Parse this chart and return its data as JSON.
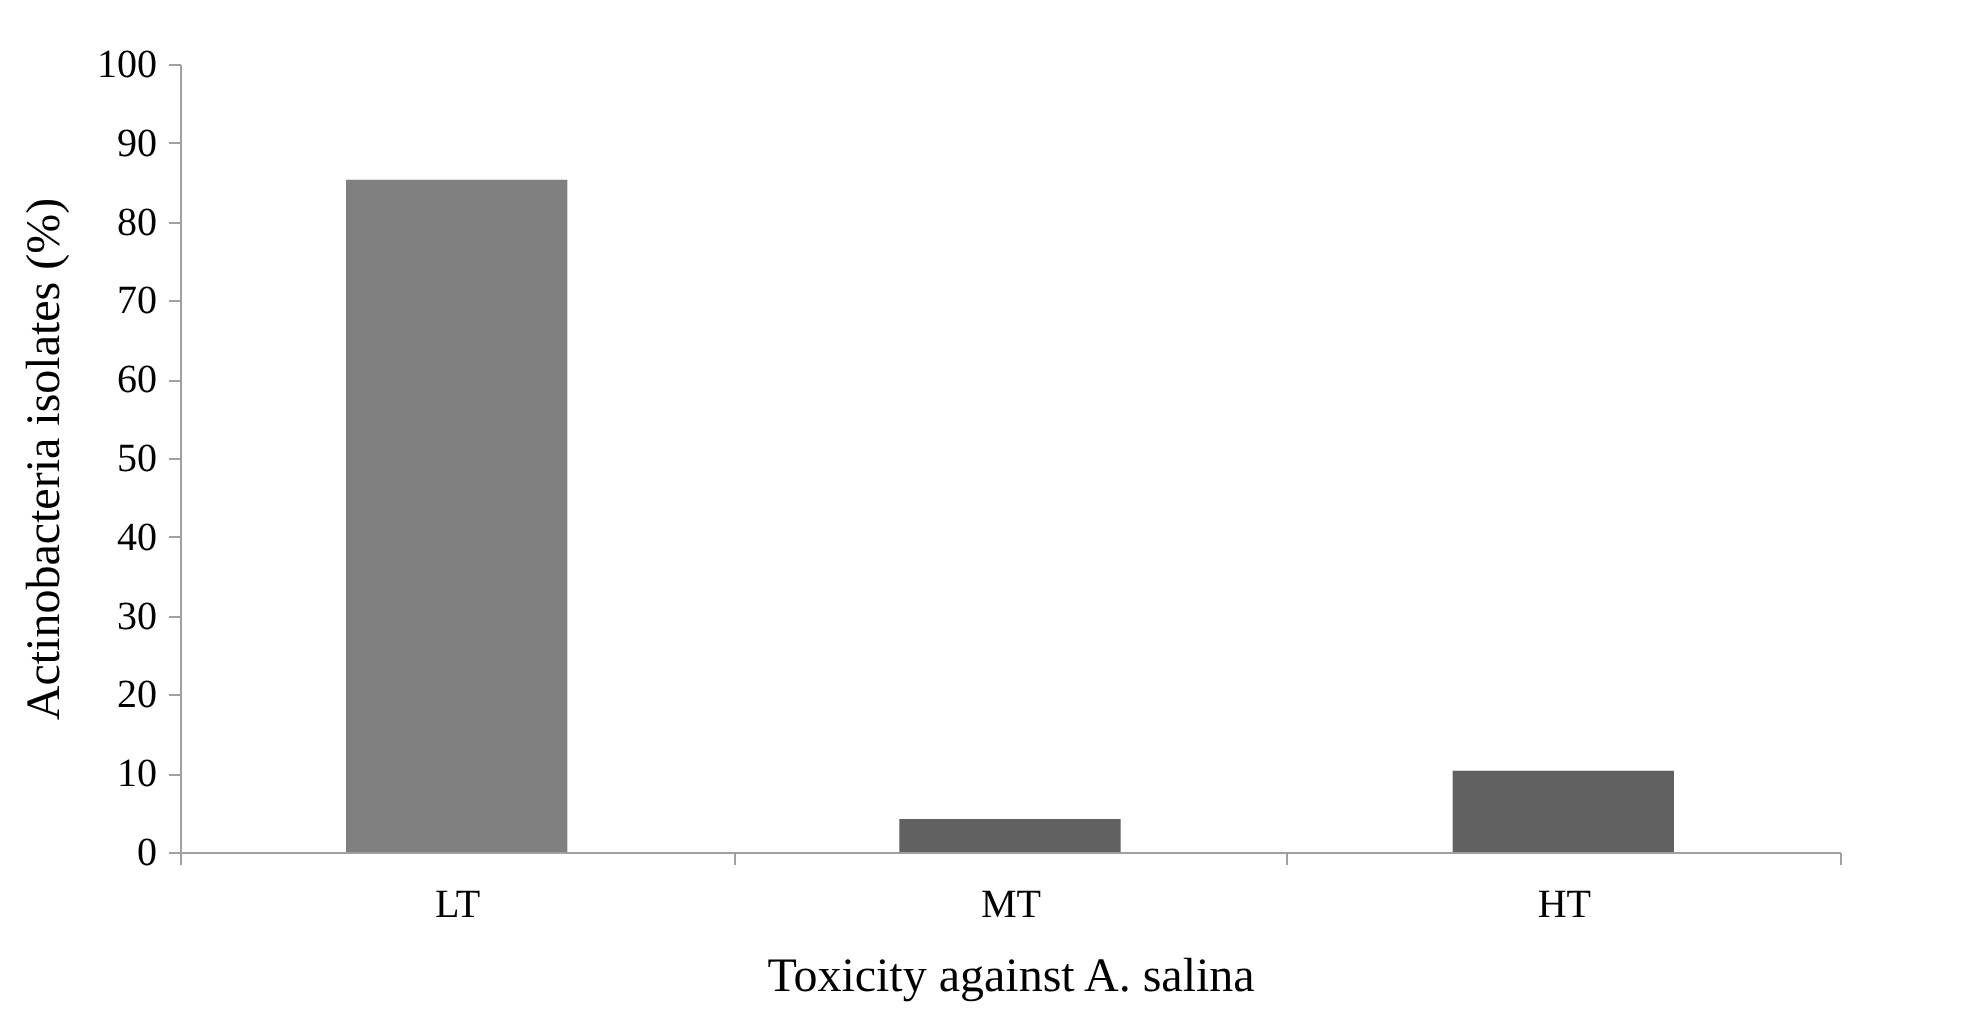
{
  "chart_data": {
    "type": "bar",
    "xlabel": "Toxicity against A. salina",
    "ylabel": "Actinobacteria  isolates  (%)",
    "categories": [
      "LT",
      "MT",
      "HT"
    ],
    "values": [
      85.3,
      4.2,
      10.3
    ],
    "colors": [
      "#808080",
      "#616161",
      "#616161"
    ],
    "ylim": [
      0,
      100
    ],
    "yticks": [
      0,
      10,
      20,
      30,
      40,
      50,
      60,
      70,
      80,
      90,
      100
    ],
    "grid": false,
    "legend": false
  }
}
